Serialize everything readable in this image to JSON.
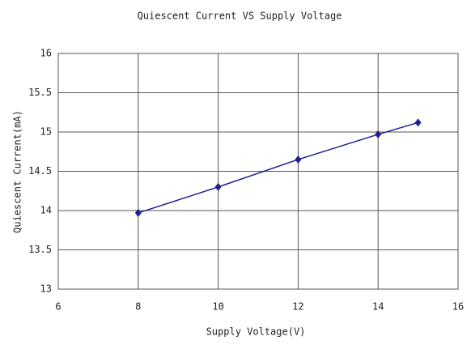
{
  "chart_data": {
    "type": "line",
    "title": "Quiescent Current VS Supply Voltage",
    "x_label": "Supply Voltage(V)",
    "y_label": "Quiescent Current(mA)",
    "x": [
      8,
      10,
      12,
      14,
      15
    ],
    "values": [
      13.97,
      14.3,
      14.65,
      14.97,
      15.12
    ],
    "color": "#1f1f8f",
    "xlim": [
      6,
      16
    ],
    "xticks": [
      6,
      8,
      10,
      12,
      14,
      16
    ],
    "ylim": [
      13,
      16
    ],
    "yticks": [
      13,
      13.5,
      14,
      14.5,
      15,
      15.5,
      16
    ],
    "grid": true
  }
}
